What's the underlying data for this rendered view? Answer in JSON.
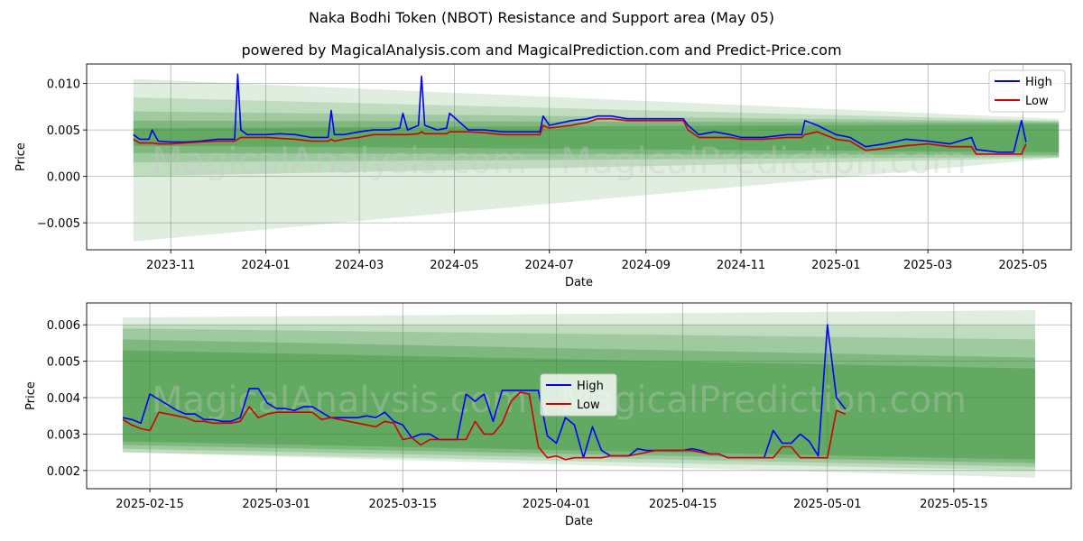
{
  "figure": {
    "suptitle": "Naka Bodhi Token (NBOT) Resistance and Support area (May 05)",
    "title": "powered by MagicalAnalysis.com and MagicalPrediction.com and Predict-Price.com",
    "watermark_left": "MagicalAnalysis.com",
    "watermark_right": "MagicalPrediction.com"
  },
  "colors": {
    "high": "#0000ff",
    "low": "#d40000",
    "band": "#2e8b2e",
    "grid": "#b0b0b0"
  },
  "chart_data": [
    {
      "type": "line",
      "xlabel": "Date",
      "ylabel": "Price",
      "xlim": [
        "2023-09-08",
        "2025-06-01"
      ],
      "ylim": [
        -0.0079,
        0.0121
      ],
      "x_ticks": [
        "2023-11",
        "2024-01",
        "2024-03",
        "2024-05",
        "2024-07",
        "2024-09",
        "2024-11",
        "2025-01",
        "2025-03",
        "2025-05"
      ],
      "y_ticks": [
        -0.005,
        0.0,
        0.005,
        0.01
      ],
      "y_tick_labels": [
        "−0.005",
        "0.000",
        "0.005",
        "0.010"
      ],
      "grid": true,
      "legend": "top-right",
      "support_resistance_bands": [
        {
          "x_start": "2023-10-08",
          "x_end": "2025-05-24",
          "upper": [
            0.0105,
            0.0062
          ],
          "lower": [
            -0.007,
            0.002
          ]
        },
        {
          "x_start": "2023-10-08",
          "x_end": "2025-05-24",
          "upper": [
            0.0085,
            0.006
          ],
          "lower": [
            0.0,
            0.002
          ]
        },
        {
          "x_start": "2023-10-08",
          "x_end": "2025-05-24",
          "upper": [
            0.007,
            0.0059
          ],
          "lower": [
            0.0015,
            0.0021
          ]
        },
        {
          "x_start": "2023-10-08",
          "x_end": "2025-05-24",
          "upper": [
            0.006,
            0.0058
          ],
          "lower": [
            0.0025,
            0.0023
          ]
        },
        {
          "x_start": "2023-10-08",
          "x_end": "2025-05-24",
          "upper": [
            0.0052,
            0.0056
          ],
          "lower": [
            0.0033,
            0.0026
          ]
        }
      ],
      "series": [
        {
          "name": "High",
          "x": [
            "2023-10-08",
            "2023-10-12",
            "2023-10-18",
            "2023-10-20",
            "2023-10-24",
            "2023-11-01",
            "2023-11-10",
            "2023-11-20",
            "2023-12-01",
            "2023-12-12",
            "2023-12-14",
            "2023-12-16",
            "2023-12-20",
            "2024-01-01",
            "2024-01-10",
            "2024-01-20",
            "2024-01-30",
            "2024-02-10",
            "2024-02-12",
            "2024-02-14",
            "2024-02-20",
            "2024-03-01",
            "2024-03-10",
            "2024-03-20",
            "2024-03-27",
            "2024-03-29",
            "2024-04-01",
            "2024-04-08",
            "2024-04-10",
            "2024-04-12",
            "2024-04-20",
            "2024-04-26",
            "2024-04-28",
            "2024-05-10",
            "2024-05-20",
            "2024-06-01",
            "2024-06-15",
            "2024-06-25",
            "2024-06-27",
            "2024-07-01",
            "2024-07-15",
            "2024-07-25",
            "2024-08-01",
            "2024-08-10",
            "2024-08-20",
            "2024-09-01",
            "2024-09-15",
            "2024-09-25",
            "2024-09-28",
            "2024-10-05",
            "2024-10-15",
            "2024-10-25",
            "2024-11-01",
            "2024-11-15",
            "2024-12-01",
            "2024-12-10",
            "2024-12-12",
            "2024-12-20",
            "2025-01-01",
            "2025-01-10",
            "2025-01-20",
            "2025-02-01",
            "2025-02-15",
            "2025-03-01",
            "2025-03-15",
            "2025-03-29",
            "2025-04-01",
            "2025-04-15",
            "2025-04-25",
            "2025-04-30",
            "2025-05-03"
          ],
          "y": [
            0.0045,
            0.004,
            0.004,
            0.005,
            0.0038,
            0.0037,
            0.0037,
            0.0038,
            0.004,
            0.004,
            0.011,
            0.005,
            0.0045,
            0.0045,
            0.0046,
            0.0045,
            0.0042,
            0.0042,
            0.0071,
            0.0045,
            0.0045,
            0.0048,
            0.005,
            0.005,
            0.0052,
            0.0068,
            0.005,
            0.0055,
            0.0108,
            0.0055,
            0.005,
            0.0052,
            0.0068,
            0.005,
            0.005,
            0.0048,
            0.0048,
            0.0048,
            0.0065,
            0.0055,
            0.006,
            0.0062,
            0.0065,
            0.0065,
            0.0062,
            0.0062,
            0.0062,
            0.0062,
            0.0055,
            0.0045,
            0.0048,
            0.0045,
            0.0042,
            0.0042,
            0.0045,
            0.0045,
            0.006,
            0.0055,
            0.0045,
            0.0042,
            0.0032,
            0.0035,
            0.004,
            0.0038,
            0.0035,
            0.0042,
            0.0029,
            0.0026,
            0.0026,
            0.006,
            0.0037
          ]
        },
        {
          "name": "Low",
          "x": [
            "2023-10-08",
            "2023-10-12",
            "2023-10-18",
            "2023-10-20",
            "2023-10-24",
            "2023-11-01",
            "2023-11-10",
            "2023-11-20",
            "2023-12-01",
            "2023-12-12",
            "2023-12-14",
            "2023-12-16",
            "2023-12-20",
            "2024-01-01",
            "2024-01-10",
            "2024-01-20",
            "2024-01-30",
            "2024-02-10",
            "2024-02-12",
            "2024-02-14",
            "2024-02-20",
            "2024-03-01",
            "2024-03-10",
            "2024-03-20",
            "2024-03-27",
            "2024-03-29",
            "2024-04-01",
            "2024-04-08",
            "2024-04-10",
            "2024-04-12",
            "2024-04-20",
            "2024-04-26",
            "2024-04-28",
            "2024-05-10",
            "2024-05-20",
            "2024-06-01",
            "2024-06-15",
            "2024-06-25",
            "2024-06-27",
            "2024-07-01",
            "2024-07-15",
            "2024-07-25",
            "2024-08-01",
            "2024-08-10",
            "2024-08-20",
            "2024-09-01",
            "2024-09-15",
            "2024-09-25",
            "2024-09-28",
            "2024-10-05",
            "2024-10-15",
            "2024-10-25",
            "2024-11-01",
            "2024-11-15",
            "2024-12-01",
            "2024-12-10",
            "2024-12-12",
            "2024-12-20",
            "2025-01-01",
            "2025-01-10",
            "2025-01-20",
            "2025-02-01",
            "2025-02-15",
            "2025-03-01",
            "2025-03-15",
            "2025-03-29",
            "2025-04-01",
            "2025-04-15",
            "2025-04-25",
            "2025-04-30",
            "2025-05-03"
          ],
          "y": [
            0.004,
            0.0036,
            0.0036,
            0.0036,
            0.0035,
            0.0035,
            0.0036,
            0.0037,
            0.0038,
            0.0038,
            0.004,
            0.0042,
            0.0042,
            0.0042,
            0.0041,
            0.004,
            0.0038,
            0.0038,
            0.004,
            0.0038,
            0.004,
            0.0042,
            0.0045,
            0.0045,
            0.0045,
            0.0045,
            0.0045,
            0.0046,
            0.0048,
            0.0046,
            0.0046,
            0.0046,
            0.0048,
            0.0048,
            0.0047,
            0.0045,
            0.0045,
            0.0045,
            0.0055,
            0.0052,
            0.0055,
            0.0058,
            0.0062,
            0.0062,
            0.006,
            0.006,
            0.006,
            0.006,
            0.005,
            0.0042,
            0.0042,
            0.0042,
            0.004,
            0.004,
            0.0042,
            0.0042,
            0.0045,
            0.0048,
            0.004,
            0.0038,
            0.0028,
            0.003,
            0.0033,
            0.0035,
            0.0032,
            0.0032,
            0.0024,
            0.0024,
            0.0024,
            0.0024,
            0.0035
          ]
        }
      ]
    },
    {
      "type": "line",
      "xlabel": "Date",
      "ylabel": "Price",
      "xlim": [
        "2025-02-08",
        "2025-05-28"
      ],
      "ylim": [
        0.0015,
        0.0066
      ],
      "x_ticks": [
        "2025-02-15",
        "2025-03-01",
        "2025-03-15",
        "2025-04-01",
        "2025-04-15",
        "2025-05-01",
        "2025-05-15"
      ],
      "y_ticks": [
        0.002,
        0.003,
        0.004,
        0.005,
        0.006
      ],
      "y_tick_labels": [
        "0.002",
        "0.003",
        "0.004",
        "0.005",
        "0.006"
      ],
      "grid": true,
      "legend": "center",
      "support_resistance_bands": [
        {
          "x_start": "2025-02-12",
          "x_end": "2025-05-24",
          "upper": [
            0.0062,
            0.0064
          ],
          "lower": [
            0.0025,
            0.0018
          ]
        },
        {
          "x_start": "2025-02-12",
          "x_end": "2025-05-24",
          "upper": [
            0.006,
            0.006
          ],
          "lower": [
            0.0025,
            0.002
          ]
        },
        {
          "x_start": "2025-02-12",
          "x_end": "2025-05-24",
          "upper": [
            0.0059,
            0.0056
          ],
          "lower": [
            0.0026,
            0.0021
          ]
        },
        {
          "x_start": "2025-02-12",
          "x_end": "2025-05-24",
          "upper": [
            0.0056,
            0.0051
          ],
          "lower": [
            0.0027,
            0.0022
          ]
        },
        {
          "x_start": "2025-02-12",
          "x_end": "2025-05-24",
          "upper": [
            0.0053,
            0.0048
          ],
          "lower": [
            0.0028,
            0.0023
          ]
        }
      ],
      "series": [
        {
          "name": "High",
          "x": [
            "2025-02-12",
            "2025-02-13",
            "2025-02-14",
            "2025-02-15",
            "2025-02-16",
            "2025-02-17",
            "2025-02-18",
            "2025-02-19",
            "2025-02-20",
            "2025-02-21",
            "2025-02-22",
            "2025-02-23",
            "2025-02-24",
            "2025-02-25",
            "2025-02-26",
            "2025-02-27",
            "2025-02-28",
            "2025-03-01",
            "2025-03-02",
            "2025-03-03",
            "2025-03-04",
            "2025-03-05",
            "2025-03-06",
            "2025-03-07",
            "2025-03-08",
            "2025-03-09",
            "2025-03-10",
            "2025-03-11",
            "2025-03-12",
            "2025-03-13",
            "2025-03-14",
            "2025-03-15",
            "2025-03-16",
            "2025-03-17",
            "2025-03-18",
            "2025-03-19",
            "2025-03-20",
            "2025-03-21",
            "2025-03-22",
            "2025-03-23",
            "2025-03-24",
            "2025-03-25",
            "2025-03-26",
            "2025-03-27",
            "2025-03-28",
            "2025-03-29",
            "2025-03-30",
            "2025-03-31",
            "2025-04-01",
            "2025-04-02",
            "2025-04-03",
            "2025-04-04",
            "2025-04-05",
            "2025-04-06",
            "2025-04-07",
            "2025-04-08",
            "2025-04-09",
            "2025-04-10",
            "2025-04-11",
            "2025-04-12",
            "2025-04-13",
            "2025-04-14",
            "2025-04-15",
            "2025-04-16",
            "2025-04-17",
            "2025-04-18",
            "2025-04-19",
            "2025-04-20",
            "2025-04-21",
            "2025-04-22",
            "2025-04-23",
            "2025-04-24",
            "2025-04-25",
            "2025-04-26",
            "2025-04-27",
            "2025-04-28",
            "2025-04-29",
            "2025-04-30",
            "2025-05-01",
            "2025-05-02",
            "2025-05-03"
          ],
          "y": [
            0.00345,
            0.0034,
            0.0033,
            0.0041,
            0.00395,
            0.0038,
            0.00365,
            0.00355,
            0.00355,
            0.0034,
            0.0034,
            0.00335,
            0.00335,
            0.00345,
            0.00425,
            0.00425,
            0.00385,
            0.0037,
            0.0037,
            0.00365,
            0.00375,
            0.00375,
            0.0036,
            0.00345,
            0.00345,
            0.00345,
            0.00345,
            0.0035,
            0.00345,
            0.0036,
            0.00335,
            0.00325,
            0.0029,
            0.003,
            0.003,
            0.00285,
            0.00285,
            0.00285,
            0.0041,
            0.0039,
            0.0041,
            0.00335,
            0.0042,
            0.0042,
            0.0042,
            0.0042,
            0.0042,
            0.00295,
            0.00275,
            0.00345,
            0.00325,
            0.00235,
            0.0032,
            0.00255,
            0.0024,
            0.0024,
            0.0024,
            0.0026,
            0.00255,
            0.00255,
            0.00255,
            0.00255,
            0.00255,
            0.0026,
            0.00255,
            0.00245,
            0.00245,
            0.00235,
            0.00235,
            0.00235,
            0.00235,
            0.00235,
            0.0031,
            0.00275,
            0.00275,
            0.003,
            0.0028,
            0.0024,
            0.006,
            0.004,
            0.00368
          ]
        },
        {
          "name": "Low",
          "x": [
            "2025-02-12",
            "2025-02-13",
            "2025-02-14",
            "2025-02-15",
            "2025-02-16",
            "2025-02-17",
            "2025-02-18",
            "2025-02-19",
            "2025-02-20",
            "2025-02-21",
            "2025-02-22",
            "2025-02-23",
            "2025-02-24",
            "2025-02-25",
            "2025-02-26",
            "2025-02-27",
            "2025-02-28",
            "2025-03-01",
            "2025-03-02",
            "2025-03-03",
            "2025-03-04",
            "2025-03-05",
            "2025-03-06",
            "2025-03-07",
            "2025-03-08",
            "2025-03-09",
            "2025-03-10",
            "2025-03-11",
            "2025-03-12",
            "2025-03-13",
            "2025-03-14",
            "2025-03-15",
            "2025-03-16",
            "2025-03-17",
            "2025-03-18",
            "2025-03-19",
            "2025-03-20",
            "2025-03-21",
            "2025-03-22",
            "2025-03-23",
            "2025-03-24",
            "2025-03-25",
            "2025-03-26",
            "2025-03-27",
            "2025-03-28",
            "2025-03-29",
            "2025-03-30",
            "2025-03-31",
            "2025-04-01",
            "2025-04-02",
            "2025-04-03",
            "2025-04-04",
            "2025-04-05",
            "2025-04-06",
            "2025-04-07",
            "2025-04-08",
            "2025-04-09",
            "2025-04-10",
            "2025-04-11",
            "2025-04-12",
            "2025-04-13",
            "2025-04-14",
            "2025-04-15",
            "2025-04-16",
            "2025-04-17",
            "2025-04-18",
            "2025-04-19",
            "2025-04-20",
            "2025-04-21",
            "2025-04-22",
            "2025-04-23",
            "2025-04-24",
            "2025-04-25",
            "2025-04-26",
            "2025-04-27",
            "2025-04-28",
            "2025-04-29",
            "2025-04-30",
            "2025-05-01",
            "2025-05-02",
            "2025-05-03"
          ],
          "y": [
            0.0034,
            0.00325,
            0.00315,
            0.0031,
            0.0036,
            0.00355,
            0.0035,
            0.00345,
            0.00335,
            0.00335,
            0.0033,
            0.0033,
            0.0033,
            0.00335,
            0.00375,
            0.00345,
            0.00355,
            0.0036,
            0.0036,
            0.0036,
            0.0036,
            0.0036,
            0.0034,
            0.00345,
            0.0034,
            0.00335,
            0.0033,
            0.00325,
            0.0032,
            0.00335,
            0.0033,
            0.00285,
            0.0029,
            0.0027,
            0.00285,
            0.00285,
            0.00285,
            0.00285,
            0.00285,
            0.00335,
            0.003,
            0.003,
            0.0033,
            0.0039,
            0.00415,
            0.0041,
            0.00265,
            0.00235,
            0.0024,
            0.0023,
            0.00235,
            0.00235,
            0.00235,
            0.00235,
            0.0024,
            0.0024,
            0.0024,
            0.00245,
            0.0025,
            0.00255,
            0.00255,
            0.00255,
            0.00255,
            0.00255,
            0.0025,
            0.00245,
            0.00245,
            0.00235,
            0.00235,
            0.00235,
            0.00235,
            0.00235,
            0.00235,
            0.00265,
            0.00265,
            0.00235,
            0.00235,
            0.00235,
            0.00235,
            0.00365,
            0.00355
          ]
        }
      ]
    }
  ]
}
